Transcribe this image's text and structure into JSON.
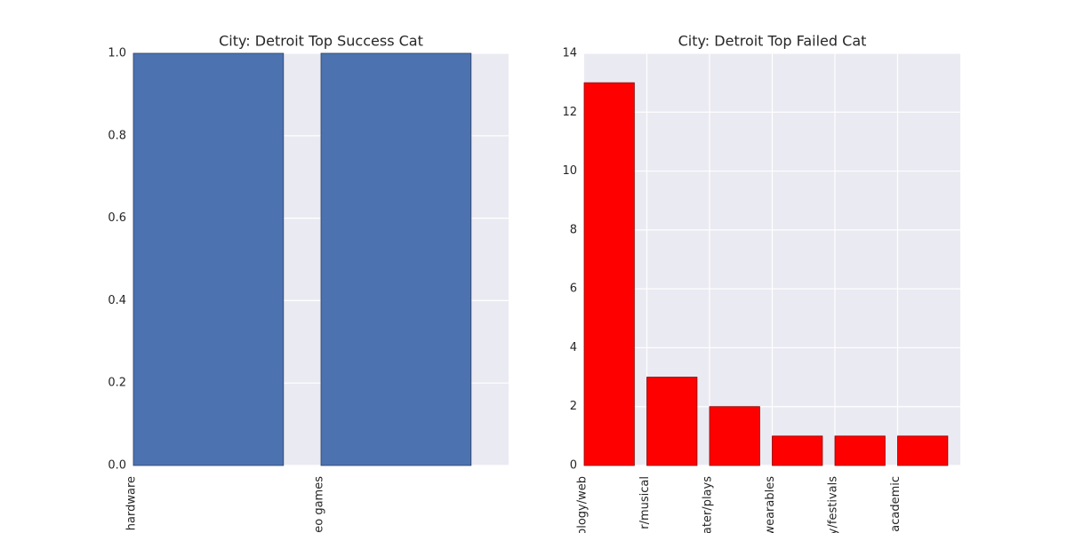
{
  "chart_data": [
    {
      "type": "bar",
      "title": "City: Detroit Top Success Cat",
      "categories": [
        "hardware",
        "eo games"
      ],
      "values": [
        1,
        1
      ],
      "color": "#4c72b0",
      "ylim": [
        0,
        1
      ],
      "yticks": [
        {
          "value": 0,
          "label": "0.0"
        },
        {
          "value": 0.2,
          "label": "0.2"
        },
        {
          "value": 0.4,
          "label": "0.4"
        },
        {
          "value": 0.6,
          "label": "0.6"
        },
        {
          "value": 0.8,
          "label": "0.8"
        },
        {
          "value": 1,
          "label": "1.0"
        }
      ],
      "grid": true
    },
    {
      "type": "bar",
      "title": "City: Detroit Top Failed Cat",
      "categories": [
        "ology/web",
        "r/musical",
        "ater/plays",
        "wearables",
        "y/festivals",
        "academic"
      ],
      "values": [
        13,
        3,
        2,
        1,
        1,
        1
      ],
      "color": "#ff0000",
      "ylim": [
        0,
        14
      ],
      "yticks": [
        0,
        2,
        4,
        6,
        8,
        10,
        12,
        14
      ],
      "grid": true
    }
  ]
}
